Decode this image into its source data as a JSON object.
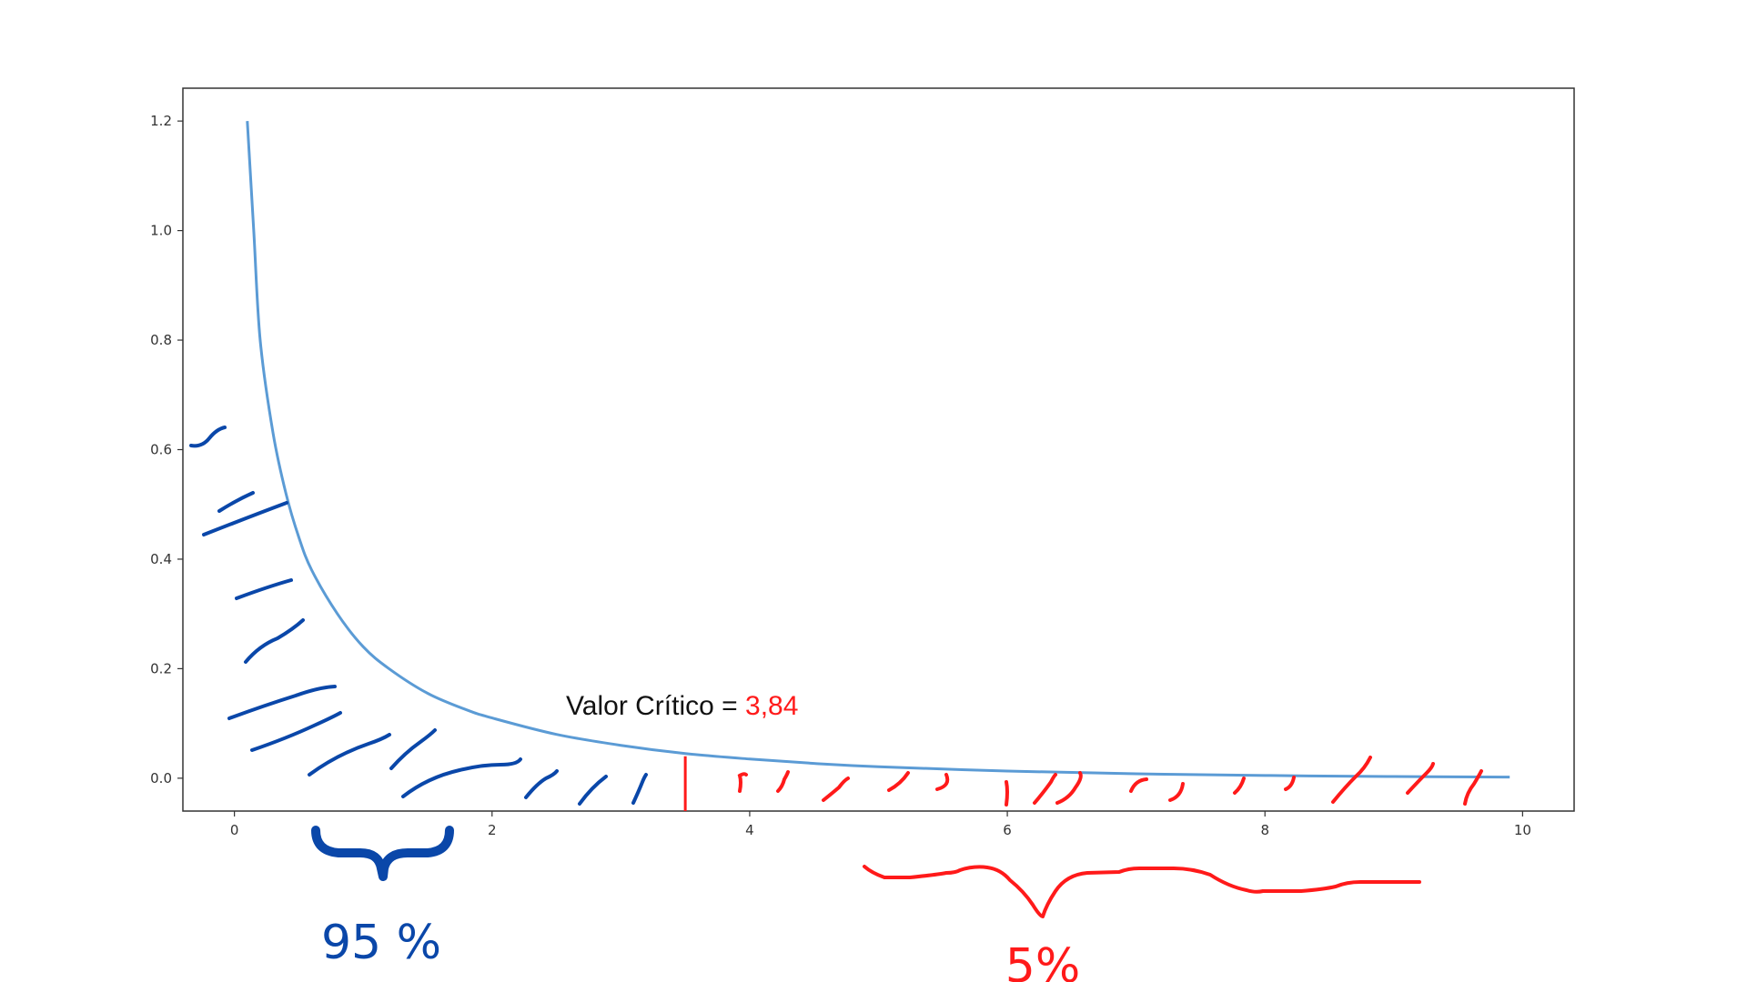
{
  "chart_data": {
    "type": "line",
    "title": "",
    "xlabel": "",
    "ylabel": "",
    "xlim": [
      -0.4,
      10.4
    ],
    "ylim": [
      -0.06,
      1.26
    ],
    "x_ticks": [
      0,
      2,
      4,
      6,
      8,
      10
    ],
    "x_tick_labels": [
      "0",
      "2",
      "4",
      "6",
      "8",
      "10"
    ],
    "y_ticks": [
      0.0,
      0.2,
      0.4,
      0.6,
      0.8,
      1.0,
      1.2
    ],
    "y_tick_labels": [
      "0.0",
      "0.2",
      "0.4",
      "0.6",
      "0.8",
      "1.0",
      "1.2"
    ],
    "grid": false,
    "series": [
      {
        "name": "",
        "color": "#5b9bd5",
        "x": [
          0.1,
          0.15,
          0.2,
          0.3,
          0.4,
          0.5,
          0.6,
          0.8,
          1.0,
          1.2,
          1.5,
          1.8,
          2.0,
          2.5,
          3.0,
          3.5,
          4.0,
          4.5,
          5.0,
          6.0,
          7.0,
          8.0,
          9.0,
          9.9
        ],
        "y": [
          1.2,
          1.0,
          0.8,
          0.63,
          0.52,
          0.44,
          0.38,
          0.3,
          0.24,
          0.2,
          0.155,
          0.125,
          0.11,
          0.08,
          0.06,
          0.045,
          0.035,
          0.027,
          0.021,
          0.013,
          0.008,
          0.005,
          0.003,
          0.002
        ]
      }
    ],
    "critical_value": {
      "x": 3.84,
      "label_prefix": "Valor Crítico = ",
      "label_value": "3,84",
      "prefix_color": "#111111",
      "value_color": "#ff1a1a",
      "line_color": "#ff1a1a"
    },
    "regions": [
      {
        "label": "95 %",
        "color": "#0a47a9"
      },
      {
        "label": "5%",
        "color": "#ff1a1a"
      }
    ]
  }
}
